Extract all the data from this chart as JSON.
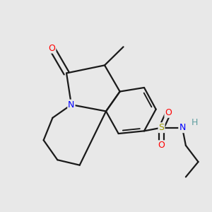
{
  "background_color": "#e8e8e8",
  "bond_color": "#1a1a1a",
  "atom_colors": {
    "O": "#ff0000",
    "N": "#0000ff",
    "S": "#999900",
    "H": "#5f9ea0",
    "C": "#1a1a1a"
  },
  "figsize": [
    3.0,
    3.0
  ],
  "dpi": 100,
  "bond_lw": 1.6,
  "font_size": 9
}
